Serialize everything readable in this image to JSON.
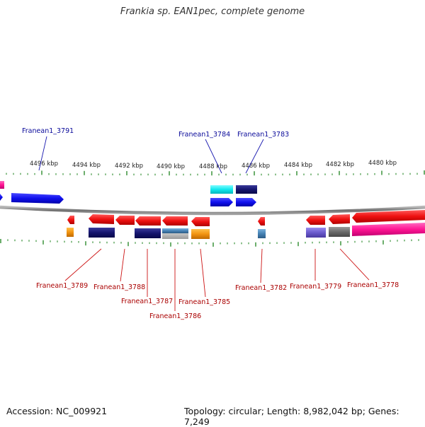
{
  "title": "Frankia sp. EAN1pec, complete genome",
  "footer": {
    "accession": "Accession: NC_009921",
    "stats": "Topology: circular; Length: 8,982,042 bp; Genes: 7,249"
  },
  "scale_labels": [
    "4496 kbp",
    "4494 kbp",
    "4492 kbp",
    "4490 kbp",
    "4488 kbp",
    "4486 kbp",
    "4484 kbp",
    "4482 kbp",
    "4480 kbp"
  ],
  "gene_labels_top": [
    "Franean1_3791",
    "Franean1_3784",
    "Franean1_3783"
  ],
  "gene_labels_bottom": [
    "Franean1_3789",
    "Franean1_3788",
    "Franean1_3787",
    "Franean1_3786",
    "Franean1_3785",
    "Franean1_3782",
    "Franean1_3779",
    "Franean1_3778"
  ],
  "colors": {
    "backbone": "#7a7a7a",
    "tick": "#2e8b2e",
    "forward_gene": "#1010ee",
    "reverse_gene": "#ee1111",
    "top_label": "#0a0a9a",
    "bottom_label": "#aa0000"
  }
}
